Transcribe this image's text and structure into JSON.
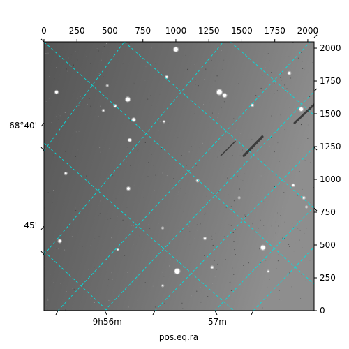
{
  "chart_data": {
    "type": "image",
    "title": "",
    "xlabel": "pos.eq.ra",
    "ylabel": "",
    "pixel_axes": {
      "x": {
        "range": [
          0,
          2048
        ],
        "ticks": [
          0,
          250,
          500,
          750,
          1000,
          1250,
          1500,
          1750,
          2000
        ],
        "tick_labels": [
          "0",
          "250",
          "500",
          "750",
          "1000",
          "1250",
          "1500",
          "1750",
          "2000"
        ]
      },
      "y": {
        "range": [
          0,
          2048
        ],
        "ticks": [
          0,
          250,
          500,
          750,
          1000,
          1250,
          1500,
          1750,
          2000
        ],
        "tick_labels": [
          "0",
          "250",
          "500",
          "750",
          "1000",
          "1250",
          "1500",
          "1750",
          "2000"
        ]
      }
    },
    "world_axes": {
      "ra_labels": [
        {
          "text": "9h56m",
          "px": 480
        },
        {
          "text": "57m",
          "px": 1315
        }
      ],
      "dec_labels": [
        {
          "text": "68°40'",
          "py": 1410
        },
        {
          "text": "45'",
          "py": 650
        }
      ]
    },
    "grid": {
      "on": true,
      "color": "#00e0e0",
      "style": "dashed"
    },
    "stars": [
      {
        "x": 1000,
        "y": 1990,
        "r": 3
      },
      {
        "x": 635,
        "y": 1610,
        "r": 3
      },
      {
        "x": 1330,
        "y": 1665,
        "r": 3.5
      },
      {
        "x": 1370,
        "y": 1640,
        "r": 2.5
      },
      {
        "x": 95,
        "y": 1665,
        "r": 2
      },
      {
        "x": 540,
        "y": 1560,
        "r": 1.5
      },
      {
        "x": 680,
        "y": 1455,
        "r": 2.2
      },
      {
        "x": 650,
        "y": 1300,
        "r": 2
      },
      {
        "x": 640,
        "y": 930,
        "r": 2
      },
      {
        "x": 930,
        "y": 1780,
        "r": 1.5
      },
      {
        "x": 1950,
        "y": 1535,
        "r": 2.5
      },
      {
        "x": 1860,
        "y": 1810,
        "r": 1.8
      },
      {
        "x": 1890,
        "y": 955,
        "r": 1.5
      },
      {
        "x": 1970,
        "y": 860,
        "r": 1.5
      },
      {
        "x": 1660,
        "y": 480,
        "r": 3
      },
      {
        "x": 1010,
        "y": 300,
        "r": 3.5
      },
      {
        "x": 120,
        "y": 530,
        "r": 2
      },
      {
        "x": 165,
        "y": 1045,
        "r": 1.5
      },
      {
        "x": 1275,
        "y": 330,
        "r": 1.5
      },
      {
        "x": 1220,
        "y": 550,
        "r": 1.5
      },
      {
        "x": 1165,
        "y": 990,
        "r": 1.5
      },
      {
        "x": 1580,
        "y": 1565,
        "r": 1.5
      },
      {
        "x": 450,
        "y": 1525,
        "r": 1.2
      },
      {
        "x": 480,
        "y": 1715,
        "r": 1
      },
      {
        "x": 910,
        "y": 1440,
        "r": 1
      },
      {
        "x": 1990,
        "y": 790,
        "r": 1
      },
      {
        "x": 1480,
        "y": 860,
        "r": 1
      },
      {
        "x": 900,
        "y": 630,
        "r": 1
      },
      {
        "x": 560,
        "y": 465,
        "r": 1
      },
      {
        "x": 900,
        "y": 190,
        "r": 1
      },
      {
        "x": 1700,
        "y": 300,
        "r": 1
      }
    ],
    "streaks": [
      {
        "x1": 1655,
        "y1": 1325,
        "x2": 1515,
        "y2": 1180,
        "w": 3.5
      },
      {
        "x1": 2048,
        "y1": 1570,
        "x2": 1900,
        "y2": 1430,
        "w": 3
      },
      {
        "x1": 1450,
        "y1": 1290,
        "x2": 1340,
        "y2": 1180,
        "w": 1.5
      }
    ]
  },
  "colors": {
    "sky": "#6b6b6b",
    "sky_light": "#8a8a8a",
    "grid": "#00e0e0",
    "frame": "#000000"
  }
}
